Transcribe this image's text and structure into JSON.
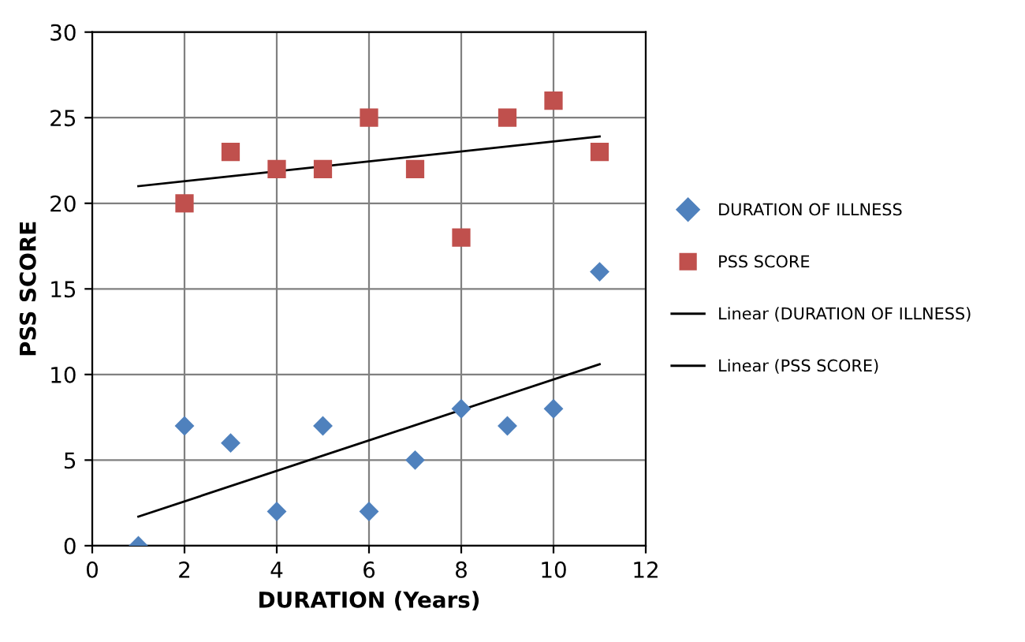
{
  "chart_data": {
    "type": "scatter",
    "xlabel": "DURATION (Years)",
    "ylabel": "PSS SCORE",
    "xlim": [
      0,
      12
    ],
    "ylim": [
      0,
      30
    ],
    "xticks": [
      0,
      2,
      4,
      6,
      8,
      10,
      12
    ],
    "yticks": [
      0,
      5,
      10,
      15,
      20,
      25,
      30
    ],
    "grid": true,
    "legend": "right",
    "series": [
      {
        "name": "DURATION OF ILLNESS",
        "marker": "diamond",
        "color": "#4f81bd",
        "x": [
          1,
          2,
          3,
          4,
          5,
          6,
          7,
          8,
          9,
          10,
          11
        ],
        "values": [
          0,
          7,
          6,
          2,
          7,
          2,
          5,
          8,
          7,
          8,
          16
        ]
      },
      {
        "name": "PSS SCORE",
        "marker": "square",
        "color": "#c0504d",
        "x": [
          2,
          3,
          4,
          5,
          6,
          7,
          8,
          9,
          10,
          11
        ],
        "values": [
          20,
          23,
          22,
          22,
          25,
          22,
          18,
          25,
          26,
          23
        ]
      },
      {
        "name": "Linear (DURATION OF ILLNESS)",
        "type": "line",
        "marker": "none",
        "line_style": "solid",
        "color": "#000000",
        "x": [
          1,
          11
        ],
        "values": [
          1.7,
          10.6
        ]
      },
      {
        "name": "Linear (PSS SCORE)",
        "type": "line",
        "marker": "none",
        "line_style": "solid",
        "color": "#000000",
        "x": [
          1,
          11
        ],
        "values": [
          21,
          23.9
        ]
      }
    ]
  }
}
